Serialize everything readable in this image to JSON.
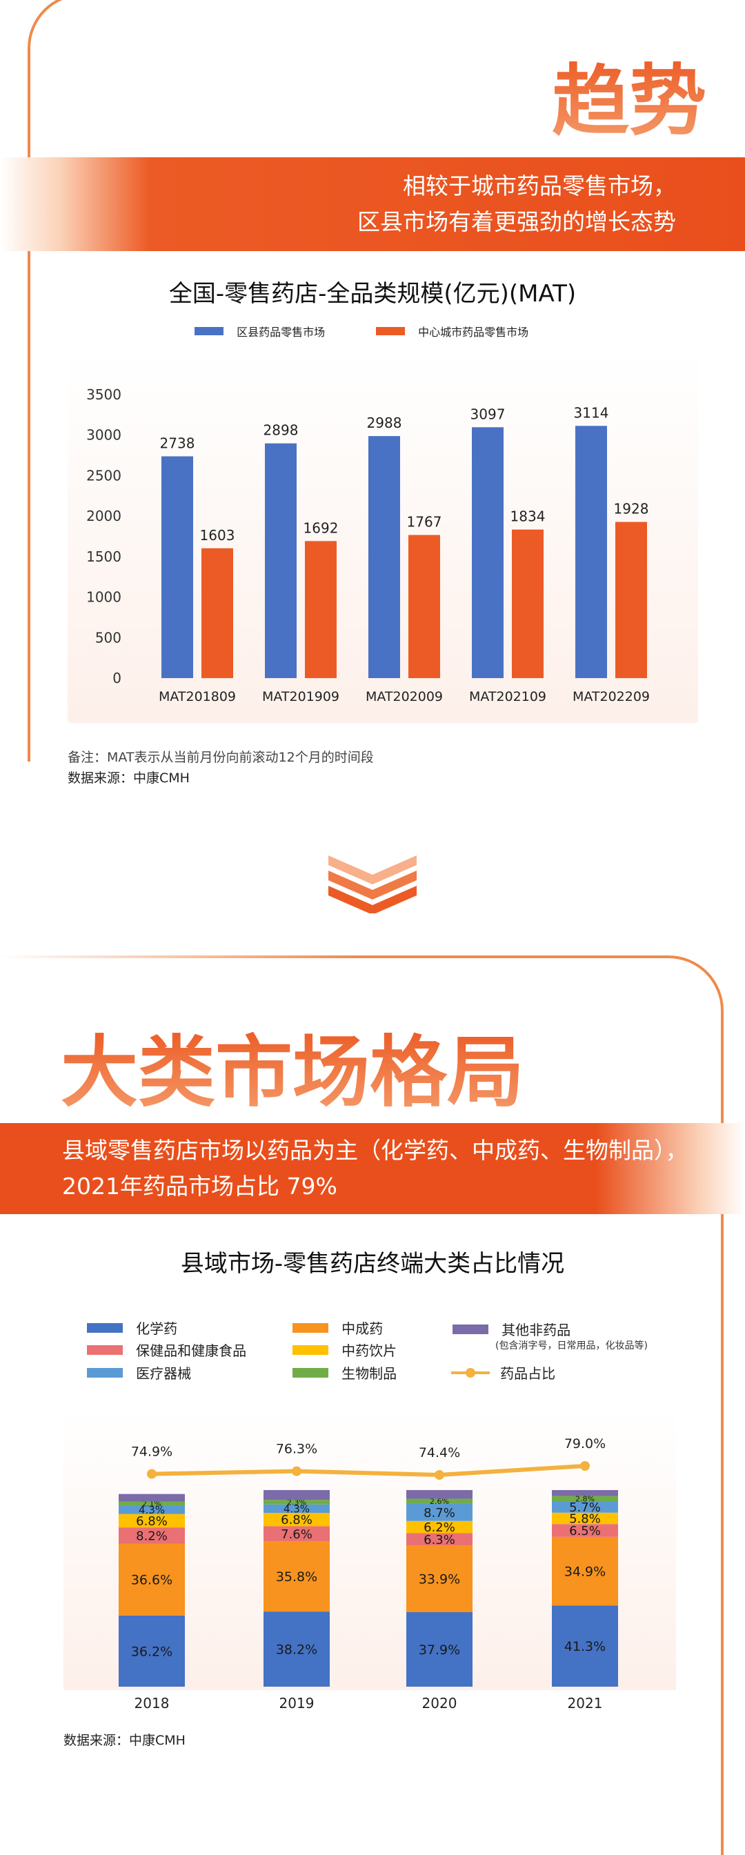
{
  "section1": {
    "heading": "趋势",
    "band_line1": "相较于城市药品零售市场，",
    "band_line2": "区县市场有着更强劲的增长态势",
    "note": "备注：MAT表示从当前月份向前滚动12个月的时间段",
    "source": "数据来源：中康CMH"
  },
  "section2": {
    "heading": "大类市场格局",
    "band_line1": "县域零售药店市场以药品为主（化学药、中成药、生物制品），",
    "band_line2": "2021年药品市场占比 79%",
    "source": "数据来源：中康CMH"
  },
  "chart_data": [
    {
      "type": "bar",
      "title": "全国-零售药店-全品类规模(亿元)(MAT)",
      "categories": [
        "MAT201809",
        "MAT201909",
        "MAT202009",
        "MAT202109",
        "MAT202209"
      ],
      "series": [
        {
          "name": "区县药品零售市场",
          "color": "#4a72c4",
          "values": [
            2738,
            2898,
            2988,
            3097,
            3114
          ]
        },
        {
          "name": "中心城市药品零售市场",
          "color": "#ec5b25",
          "values": [
            1603,
            1692,
            1767,
            1834,
            1928
          ]
        }
      ],
      "yticks": [
        "0",
        "500",
        "1000",
        "1500",
        "2000",
        "2500",
        "3000",
        "3500"
      ],
      "ylim": [
        0,
        3500
      ],
      "legend": "top-center"
    },
    {
      "type": "bar",
      "stacked": true,
      "title": "县域市场-零售药店终端大类占比情况",
      "categories": [
        "2018",
        "2019",
        "2020",
        "2021"
      ],
      "series": [
        {
          "name": "化学药",
          "color": "#4472c4",
          "values": [
            36.2,
            38.2,
            37.9,
            41.3
          ],
          "labels": [
            "36.2%",
            "38.2%",
            "37.9%",
            "41.3%"
          ]
        },
        {
          "name": "中成药",
          "color": "#f7931e",
          "values": [
            36.6,
            35.8,
            33.9,
            34.9
          ],
          "labels": [
            "36.6%",
            "35.8%",
            "33.9%",
            "34.9%"
          ]
        },
        {
          "name": "保健品和健康食品",
          "color": "#ea7073",
          "values": [
            8.2,
            7.6,
            6.3,
            6.5
          ],
          "labels": [
            "8.2%",
            "7.6%",
            "6.3%",
            "6.5%"
          ]
        },
        {
          "name": "中药饮片",
          "color": "#ffc000",
          "values": [
            6.8,
            6.8,
            6.2,
            5.8
          ],
          "labels": [
            "6.8%",
            "6.8%",
            "6.2%",
            "5.8%"
          ]
        },
        {
          "name": "医疗器械",
          "color": "#5b9bd5",
          "values": [
            4.3,
            4.3,
            8.7,
            5.7
          ],
          "labels": [
            "4.3%",
            "4.3%",
            "8.7%",
            "5.7%"
          ]
        },
        {
          "name": "生物制品",
          "color": "#70ad47",
          "values": [
            2.1,
            2.3,
            2.6,
            2.8
          ],
          "labels": [
            "2.1%",
            "2.3%",
            "2.6%",
            "2.8%"
          ]
        },
        {
          "name": "其他非药品",
          "color": "#7b6ba8",
          "values": [
            3.8,
            5.0,
            4.4,
            3.0
          ],
          "labels": [
            "",
            "",
            "",
            ""
          ]
        }
      ],
      "line": {
        "name": "药品占比",
        "color": "#f4b13e",
        "values": [
          74.9,
          76.3,
          74.4,
          79.0
        ],
        "labels": [
          "74.9%",
          "76.3%",
          "74.4%",
          "79.0%"
        ]
      },
      "legend_note": "(包含消字号，日常用品，化妆品等)",
      "legend": "top"
    }
  ]
}
